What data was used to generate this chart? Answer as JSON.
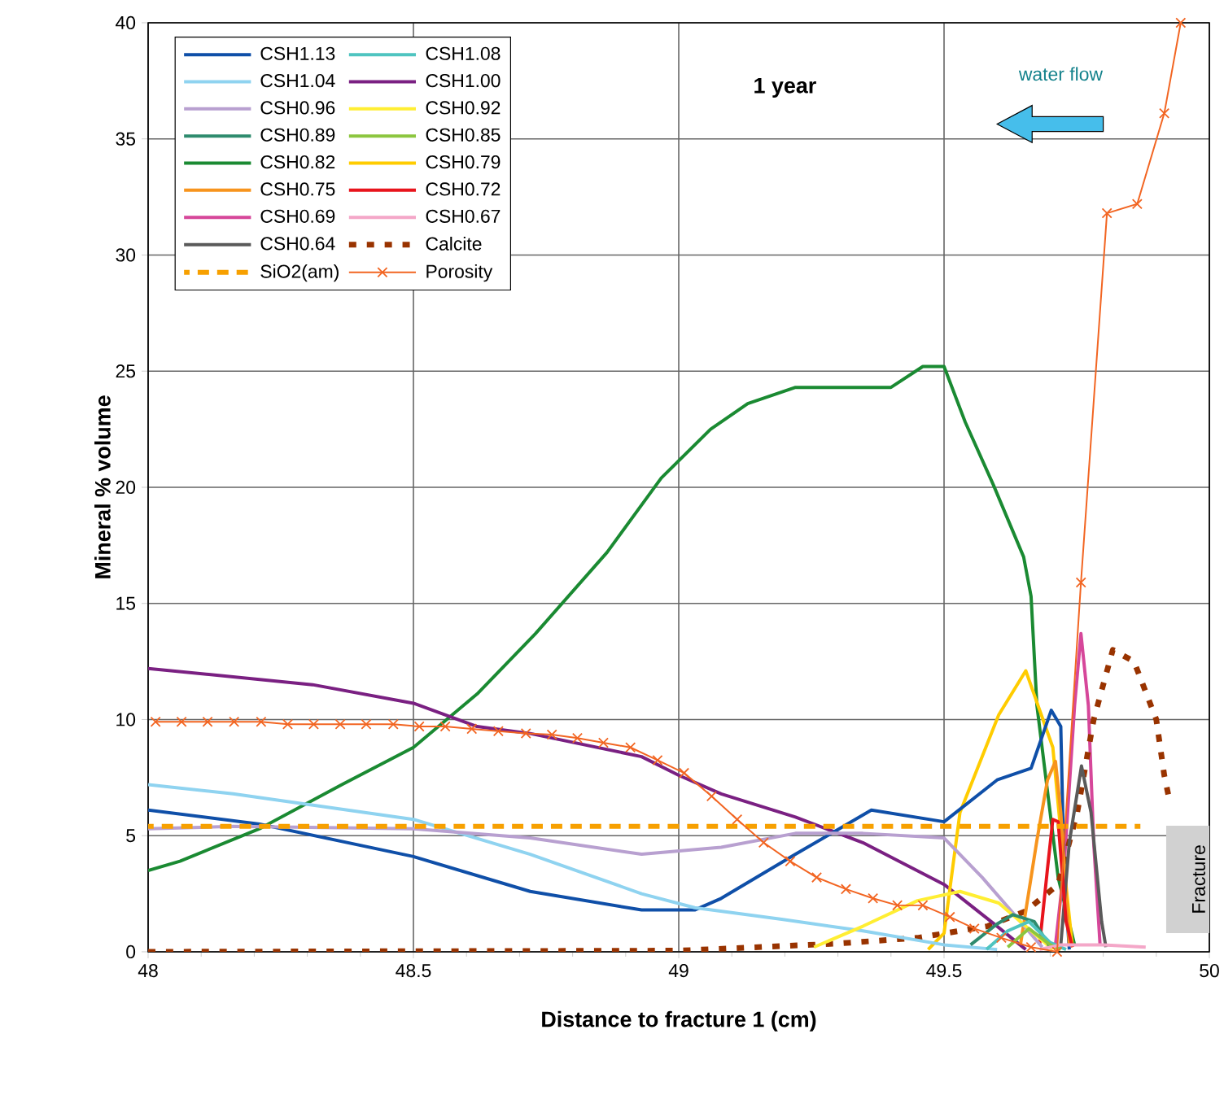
{
  "chart_data": {
    "type": "line",
    "xlabel": "Distance to fracture 1 (cm)",
    "ylabel": "Mineral % volume",
    "annotations": [
      "**1 year**",
      "water flow",
      "Fracture"
    ],
    "xlim": [
      48,
      50
    ],
    "ylim": [
      0,
      40
    ],
    "xticks": [
      48,
      48.5,
      49,
      49.5,
      50
    ],
    "yticks": [
      0,
      5,
      10,
      15,
      20,
      25,
      30,
      35,
      40
    ],
    "grid": true,
    "legend": "top left",
    "series": [
      {
        "name": "CSH1.13",
        "color": "#0f4fa8",
        "line_style": "solid",
        "marker": "none",
        "x": [
          48,
          48.21,
          48.5,
          48.72,
          48.93,
          49.03,
          49.08,
          49.22,
          49.363,
          49.5,
          49.6,
          49.664,
          49.702,
          49.72,
          49.726,
          49.736
        ],
        "values": [
          6.1,
          5.5,
          4.1,
          2.6,
          1.8,
          1.8,
          2.3,
          4.2,
          6.1,
          5.6,
          7.4,
          7.9,
          10.4,
          9.7,
          3.6,
          0.1
        ]
      },
      {
        "name": "CSH1.08",
        "color": "#4fc4c0",
        "line_style": "solid",
        "marker": "none",
        "x": [
          49.58,
          49.62,
          49.66,
          49.7,
          49.73
        ],
        "values": [
          0.1,
          0.9,
          1.3,
          0.4,
          0.1
        ]
      },
      {
        "name": "CSH1.04",
        "color": "#8fd3f0",
        "line_style": "solid",
        "marker": "none",
        "x": [
          48,
          48.16,
          48.5,
          48.72,
          48.93,
          49.03,
          49.194,
          49.347,
          49.5,
          49.6
        ],
        "values": [
          7.2,
          6.8,
          5.7,
          4.2,
          2.5,
          1.9,
          1.4,
          0.9,
          0.3,
          0.1
        ]
      },
      {
        "name": "CSH1.00",
        "color": "#7a2082",
        "line_style": "solid",
        "marker": "none",
        "x": [
          48,
          48.31,
          48.5,
          48.62,
          48.72,
          48.93,
          49.0,
          49.08,
          49.22,
          49.347,
          49.5,
          49.6,
          49.654
        ],
        "values": [
          12.2,
          11.5,
          10.7,
          9.7,
          9.4,
          8.4,
          7.6,
          6.8,
          5.8,
          4.7,
          2.9,
          1.1,
          0.1
        ]
      },
      {
        "name": "CSH0.96",
        "color": "#b8a0d0",
        "line_style": "solid",
        "marker": "none",
        "x": [
          48,
          48.16,
          48.5,
          48.72,
          48.93,
          49.08,
          49.22,
          49.347,
          49.5,
          49.572,
          49.644,
          49.685
        ],
        "values": [
          5.3,
          5.4,
          5.3,
          4.9,
          4.2,
          4.5,
          5.1,
          5.1,
          4.9,
          3.2,
          1.3,
          0.2
        ]
      },
      {
        "name": "CSH0.92",
        "color": "#ffee33",
        "line_style": "solid",
        "marker": "none",
        "x": [
          49.255,
          49.347,
          49.45,
          49.53,
          49.603,
          49.654,
          49.705
        ],
        "values": [
          0.2,
          1.1,
          2.2,
          2.6,
          2.1,
          1.1,
          0.1
        ]
      },
      {
        "name": "CSH0.89",
        "color": "#2e8b6e",
        "line_style": "solid",
        "marker": "none",
        "x": [
          49.55,
          49.6,
          49.63,
          49.67,
          49.7
        ],
        "values": [
          0.3,
          1.2,
          1.6,
          1.3,
          0.2
        ]
      },
      {
        "name": "CSH0.85",
        "color": "#8cc63f",
        "line_style": "solid",
        "marker": "none",
        "x": [
          49.62,
          49.66,
          49.7,
          49.72
        ],
        "values": [
          0.2,
          1.0,
          0.3,
          0.1
        ]
      },
      {
        "name": "CSH0.82",
        "color": "#1a8a32",
        "line_style": "solid",
        "marker": "none",
        "x": [
          48,
          48.06,
          48.21,
          48.365,
          48.5,
          48.62,
          48.73,
          48.865,
          48.967,
          49.06,
          49.13,
          49.22,
          49.4,
          49.46,
          49.5,
          49.54,
          49.593,
          49.65,
          49.664,
          49.675,
          49.695,
          49.715,
          49.746
        ],
        "values": [
          3.5,
          3.9,
          5.3,
          7.2,
          8.8,
          11.1,
          13.7,
          17.2,
          20.4,
          22.5,
          23.6,
          24.3,
          24.3,
          25.2,
          25.2,
          22.8,
          20.1,
          17.0,
          15.3,
          10.6,
          6.9,
          3.2,
          0.3
        ]
      },
      {
        "name": "CSH0.79",
        "color": "#ffcc00",
        "line_style": "solid",
        "marker": "none",
        "x": [
          49.47,
          49.5,
          49.53,
          49.603,
          49.654,
          49.705,
          49.726,
          49.742
        ],
        "values": [
          0.1,
          0.8,
          6.0,
          10.2,
          12.1,
          8.8,
          3.7,
          0.2
        ]
      },
      {
        "name": "CSH0.75",
        "color": "#f7941d",
        "line_style": "solid",
        "marker": "none",
        "x": [
          49.644,
          49.675,
          49.695,
          49.71,
          49.72,
          49.736
        ],
        "values": [
          0.3,
          4.8,
          7.4,
          8.2,
          6.0,
          0.3
        ]
      },
      {
        "name": "CSH0.72",
        "color": "#e8141c",
        "line_style": "solid",
        "marker": "none",
        "x": [
          49.68,
          49.695,
          49.705,
          49.715,
          49.73,
          49.742
        ],
        "values": [
          0.3,
          3.6,
          5.7,
          5.6,
          1.3,
          0.2
        ]
      },
      {
        "name": "CSH0.69",
        "color": "#d6479a",
        "line_style": "solid",
        "marker": "none",
        "x": [
          49.71,
          49.726,
          49.746,
          49.758,
          49.772,
          49.782,
          49.794
        ],
        "values": [
          0.3,
          3.6,
          10.6,
          13.7,
          10.6,
          4.7,
          0.3
        ]
      },
      {
        "name": "CSH0.67",
        "color": "#f4a7c8",
        "line_style": "solid",
        "marker": "none",
        "x": [
          49.68,
          49.72,
          49.8,
          49.88
        ],
        "values": [
          0.1,
          0.3,
          0.3,
          0.2
        ]
      },
      {
        "name": "CSH0.64",
        "color": "#5a5a5a",
        "line_style": "solid",
        "marker": "none",
        "x": [
          49.72,
          49.736,
          49.759,
          49.777,
          49.797,
          49.805
        ],
        "values": [
          0.3,
          4.7,
          8.0,
          6.0,
          1.3,
          0.2
        ]
      },
      {
        "name": "Calcite",
        "color": "#993300",
        "line_style": "dotted",
        "marker": "none",
        "x": [
          48,
          49.0,
          49.15,
          49.296,
          49.45,
          49.582,
          49.654,
          49.715,
          49.751,
          49.782,
          49.818,
          49.858,
          49.9,
          49.915,
          49.925
        ],
        "values": [
          0,
          0.05,
          0.2,
          0.35,
          0.6,
          1.1,
          1.75,
          2.9,
          6.0,
          10.0,
          13.0,
          12.5,
          10.0,
          7.6,
          6.5
        ]
      },
      {
        "name": "SiO2(am)",
        "color": "#f7a000",
        "line_style": "dashed",
        "marker": "none",
        "x": [
          48,
          49.87
        ],
        "values": [
          5.4,
          5.4
        ]
      },
      {
        "name": "Porosity",
        "color": "#f26522",
        "line_style": "solid",
        "marker": "cross",
        "x": [
          48.014,
          48.063,
          48.112,
          48.162,
          48.213,
          48.263,
          48.312,
          48.362,
          48.411,
          48.462,
          48.511,
          48.56,
          48.61,
          48.66,
          48.712,
          48.761,
          48.809,
          48.858,
          48.909,
          48.96,
          49.01,
          49.062,
          49.11,
          49.16,
          49.21,
          49.26,
          49.315,
          49.366,
          49.412,
          49.46,
          49.511,
          49.557,
          49.608,
          49.664,
          49.713,
          49.758,
          49.807,
          49.864,
          49.915,
          49.946
        ],
        "values": [
          9.9,
          9.9,
          9.9,
          9.9,
          9.9,
          9.8,
          9.8,
          9.8,
          9.8,
          9.8,
          9.7,
          9.7,
          9.6,
          9.5,
          9.4,
          9.35,
          9.2,
          9.0,
          8.8,
          8.25,
          7.7,
          6.7,
          5.7,
          4.7,
          3.9,
          3.2,
          2.7,
          2.3,
          2.0,
          2.0,
          1.5,
          1.0,
          0.6,
          0.2,
          0.0,
          15.9,
          31.8,
          32.2,
          36.1,
          40
        ]
      }
    ]
  }
}
